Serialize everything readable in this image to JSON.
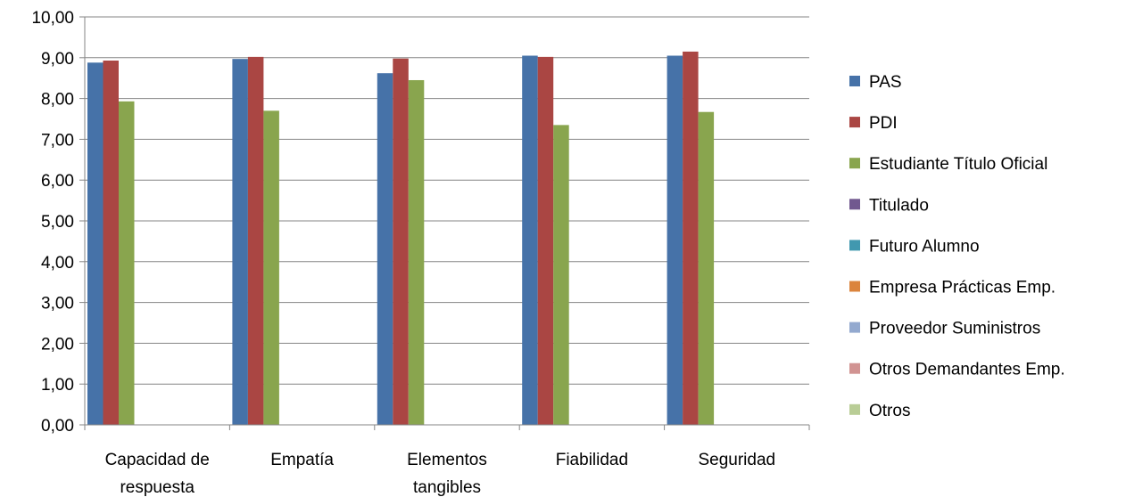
{
  "chart_data": {
    "type": "bar",
    "title": "",
    "xlabel": "",
    "ylabel": "",
    "ylim": [
      0,
      10
    ],
    "y_tick_labels": [
      "0,00",
      "1,00",
      "2,00",
      "3,00",
      "4,00",
      "5,00",
      "6,00",
      "7,00",
      "8,00",
      "9,00",
      "10,00"
    ],
    "grid": true,
    "legend_position": "right",
    "categories": [
      [
        "Capacidad de",
        "respuesta"
      ],
      [
        "Empatía"
      ],
      [
        "Elementos",
        "tangibles"
      ],
      [
        "Fiabilidad"
      ],
      [
        "Seguridad"
      ]
    ],
    "series": [
      {
        "name": "PAS",
        "color": "#4672A8",
        "values": [
          8.88,
          8.97,
          8.62,
          9.05,
          9.05
        ]
      },
      {
        "name": "PDI",
        "color": "#AA4643",
        "values": [
          8.93,
          9.02,
          8.98,
          9.02,
          9.15
        ]
      },
      {
        "name": "Estudiante Título Oficial",
        "color": "#89A54E",
        "values": [
          7.93,
          7.7,
          8.45,
          7.35,
          7.67
        ]
      },
      {
        "name": "Titulado",
        "color": "#71588F",
        "values": [
          null,
          null,
          null,
          null,
          null
        ]
      },
      {
        "name": "Futuro Alumno",
        "color": "#4198AF",
        "values": [
          null,
          null,
          null,
          null,
          null
        ]
      },
      {
        "name": "Empresa Prácticas Emp.",
        "color": "#DB843D",
        "values": [
          null,
          null,
          null,
          null,
          null
        ]
      },
      {
        "name": "Proveedor Suministros",
        "color": "#93A9CF",
        "values": [
          null,
          null,
          null,
          null,
          null
        ]
      },
      {
        "name": "Otros Demandantes Emp.",
        "color": "#D19392",
        "values": [
          null,
          null,
          null,
          null,
          null
        ]
      },
      {
        "name": "Otros",
        "color": "#B9CD96",
        "values": [
          null,
          null,
          null,
          null,
          null
        ]
      }
    ]
  }
}
